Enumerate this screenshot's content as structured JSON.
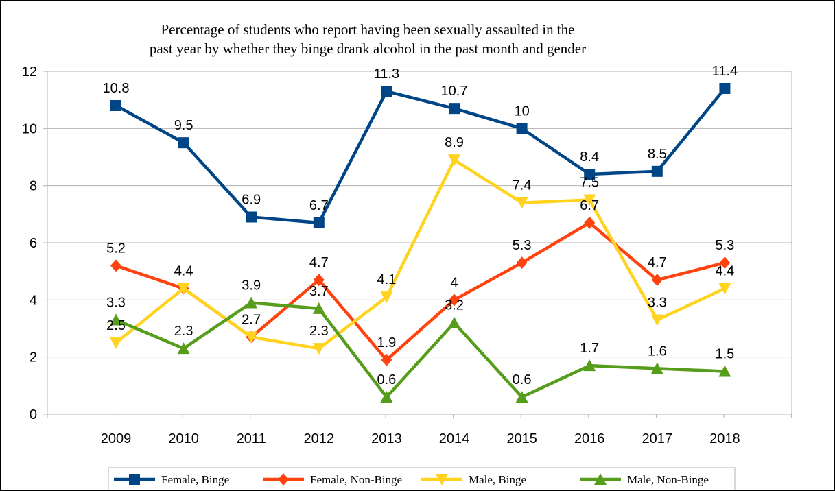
{
  "chart_data": {
    "type": "line",
    "title": [
      "Percentage of students who report having been sexually assaulted in the",
      "past year by whether they binge drank alcohol in the past month and gender"
    ],
    "categories": [
      "2009",
      "2010",
      "2011",
      "2012",
      "2013",
      "2014",
      "2015",
      "2016",
      "2017",
      "2018"
    ],
    "ylim": [
      0,
      12
    ],
    "yticks": [
      0,
      2,
      4,
      6,
      8,
      10,
      12
    ],
    "grid": true,
    "legend_position": "bottom",
    "series": [
      {
        "name": "Female, Binge",
        "color": "#004586",
        "marker": "square",
        "values": [
          10.8,
          9.5,
          6.9,
          6.7,
          11.3,
          10.7,
          10,
          8.4,
          8.5,
          11.4
        ]
      },
      {
        "name": "Female, Non-Binge",
        "color": "#ff420e",
        "marker": "diamond",
        "values": [
          5.2,
          4.4,
          2.7,
          4.7,
          1.9,
          4,
          5.3,
          6.7,
          4.7,
          5.3
        ]
      },
      {
        "name": "Male, Binge",
        "color": "#ffd320",
        "marker": "triangle-down",
        "values": [
          2.5,
          4.4,
          2.7,
          2.3,
          4.1,
          8.9,
          7.4,
          7.5,
          3.3,
          4.4
        ]
      },
      {
        "name": "Male, Non-Binge",
        "color": "#579d1c",
        "marker": "triangle-up",
        "values": [
          3.3,
          2.3,
          3.9,
          3.7,
          0.6,
          3.2,
          0.6,
          1.7,
          1.6,
          1.5
        ]
      }
    ]
  }
}
